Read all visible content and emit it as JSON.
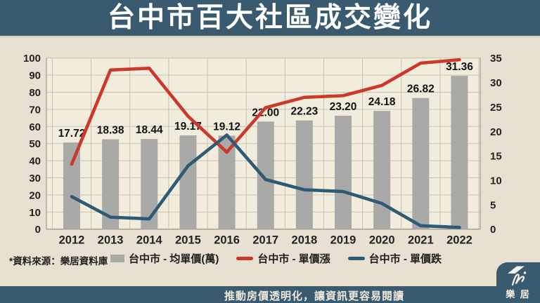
{
  "header": {
    "title": "台中市百大社區成交變化"
  },
  "source_note": "*資料來源：樂居資料庫",
  "footer": {
    "slogan": "推動房價透明化，讓資訊更容易閱讀",
    "logo_text": "樂 居"
  },
  "colors": {
    "header_bg": "#3a5a70",
    "content_bg": "#e8e1d2",
    "plot_bg": "#f2ecdc",
    "grid": "#c7c1b1",
    "plot_border": "#a29b8b",
    "bar": "#a9a9a7",
    "line_up": "#cb392b",
    "line_down": "#2e5b73",
    "tick_text": "#222222",
    "label_text": "#111111"
  },
  "chart_data": {
    "type": "bar",
    "subtype": "combo-bar-line",
    "title": "台中市百大社區成交變化",
    "categories": [
      "2012",
      "2013",
      "2014",
      "2015",
      "2016",
      "2017",
      "2018",
      "2019",
      "2020",
      "2021",
      "2022"
    ],
    "series": [
      {
        "name": "台中市 - 均單價(萬)",
        "type": "bar",
        "axis": "right",
        "color": "#a9a9a7",
        "values": [
          17.72,
          18.38,
          18.44,
          19.17,
          19.12,
          22.0,
          22.23,
          23.2,
          24.18,
          26.82,
          31.36
        ],
        "value_labels": [
          "17.72",
          "18.38",
          "18.44",
          "19.17",
          "19.12",
          "22.00",
          "22.23",
          "23.20",
          "24.18",
          "26.82",
          "31.36"
        ]
      },
      {
        "name": "台中市 - 單價漲",
        "type": "line",
        "axis": "left",
        "color": "#cb392b",
        "values": [
          38,
          93,
          94,
          66,
          45,
          71,
          77,
          78,
          84,
          97,
          99
        ]
      },
      {
        "name": "台中市 - 單價跌",
        "type": "line",
        "axis": "left",
        "color": "#2e5b73",
        "values": [
          19,
          7,
          6,
          37,
          55,
          29,
          23,
          22,
          15,
          2,
          1
        ]
      }
    ],
    "left_axis": {
      "min": 0,
      "max": 100,
      "step": 10,
      "ticks": [
        "0",
        "10",
        "20",
        "30",
        "40",
        "50",
        "60",
        "70",
        "80",
        "90",
        "100"
      ]
    },
    "right_axis": {
      "min": 0,
      "max": 35,
      "step": 5,
      "ticks": [
        "0",
        "5",
        "10",
        "15",
        "20",
        "25",
        "30",
        "35"
      ]
    },
    "grid": true,
    "legend_position": "bottom"
  }
}
